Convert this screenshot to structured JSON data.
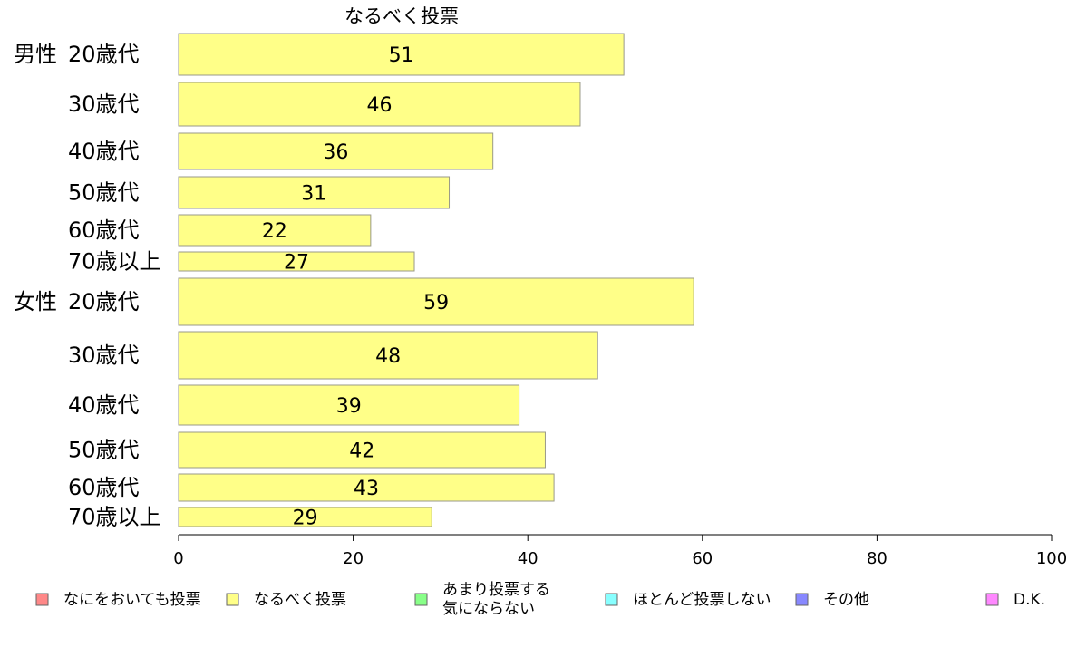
{
  "chart_data": {
    "type": "bar",
    "orientation": "horizontal",
    "title": "なるべく投票",
    "categories": [
      {
        "group": "男性",
        "label": "20歳代"
      },
      {
        "group": "",
        "label": "30歳代"
      },
      {
        "group": "",
        "label": "40歳代"
      },
      {
        "group": "",
        "label": "50歳代"
      },
      {
        "group": "",
        "label": "60歳代"
      },
      {
        "group": "",
        "label": "70歳以上"
      },
      {
        "group": "女性",
        "label": "20歳代"
      },
      {
        "group": "",
        "label": "30歳代"
      },
      {
        "group": "",
        "label": "40歳代"
      },
      {
        "group": "",
        "label": "50歳代"
      },
      {
        "group": "",
        "label": "60歳代"
      },
      {
        "group": "",
        "label": "70歳以上"
      }
    ],
    "series": [
      {
        "name": "なるべく投票",
        "color": "#ffff88",
        "values": [
          51,
          46,
          36,
          31,
          22,
          27,
          59,
          48,
          39,
          42,
          43,
          29
        ]
      }
    ],
    "xlim": [
      0,
      100
    ],
    "xticks": [
      0,
      20,
      40,
      60,
      80,
      100
    ],
    "grid": false,
    "legend": {
      "placement": "bottom",
      "entries": [
        {
          "lines": [
            "なにをおいても投票"
          ],
          "color": "#ff8888"
        },
        {
          "lines": [
            "なるべく投票"
          ],
          "color": "#ffff88"
        },
        {
          "lines": [
            "あまり投票する",
            "気にならない"
          ],
          "color": "#88ff88"
        },
        {
          "lines": [
            "ほとんど投票しない"
          ],
          "color": "#88ffff"
        },
        {
          "lines": [
            "その他"
          ],
          "color": "#8888ff"
        },
        {
          "lines": [
            "D.K."
          ],
          "color": "#ff88ff"
        }
      ]
    }
  }
}
